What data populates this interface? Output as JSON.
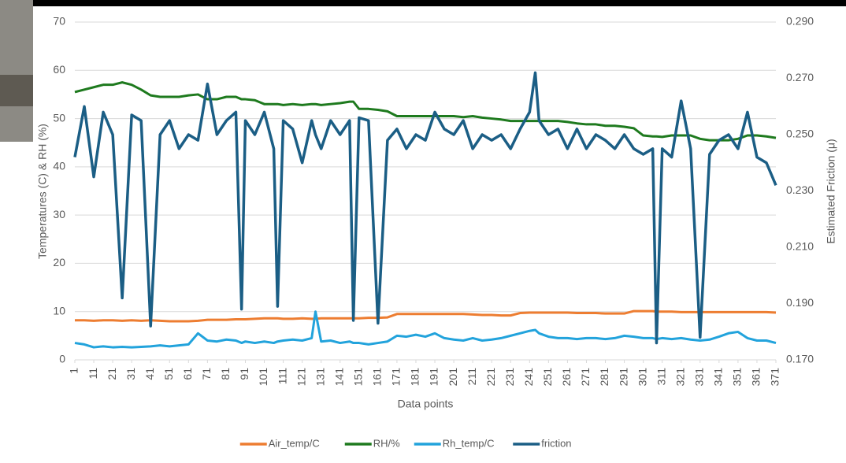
{
  "chart_data": {
    "type": "line",
    "y_label": "Temperatures (C) & RH (%)",
    "y2_label": "Estimated Friction (μ)",
    "x_label": "Data points",
    "legend": "bottom",
    "grid": true,
    "xlim": [
      1,
      371
    ],
    "xticks": [
      1,
      11,
      21,
      31,
      41,
      51,
      61,
      71,
      81,
      91,
      101,
      111,
      121,
      131,
      141,
      151,
      161,
      171,
      181,
      191,
      201,
      211,
      221,
      231,
      241,
      251,
      261,
      271,
      281,
      291,
      301,
      311,
      321,
      331,
      341,
      351,
      361,
      371
    ],
    "ylim": [
      0,
      70
    ],
    "yticks": [
      0,
      10,
      20,
      30,
      40,
      50,
      60,
      70
    ],
    "y2lim": [
      0.17,
      0.29
    ],
    "y2ticks": [
      {
        "value": 0.17,
        "label": "0.170"
      },
      {
        "value": 0.19,
        "label": "0.190"
      },
      {
        "value": 0.21,
        "label": "0.210"
      },
      {
        "value": 0.23,
        "label": "0.230"
      },
      {
        "value": 0.25,
        "label": "0.250"
      },
      {
        "value": 0.27,
        "label": "0.270"
      },
      {
        "value": 0.29,
        "label": "0.290"
      }
    ],
    "x": [
      1,
      6,
      11,
      16,
      21,
      26,
      31,
      36,
      41,
      46,
      51,
      56,
      61,
      66,
      71,
      76,
      81,
      86,
      89,
      91,
      96,
      101,
      106,
      108,
      111,
      116,
      121,
      126,
      128,
      131,
      136,
      141,
      146,
      148,
      151,
      156,
      161,
      166,
      171,
      176,
      181,
      186,
      191,
      196,
      201,
      206,
      211,
      216,
      221,
      226,
      231,
      236,
      241,
      244,
      246,
      251,
      256,
      261,
      266,
      271,
      276,
      281,
      286,
      291,
      296,
      301,
      306,
      308,
      311,
      316,
      321,
      326,
      331,
      336,
      341,
      346,
      351,
      356,
      361,
      366,
      371
    ],
    "series": [
      {
        "name": "Air_temp/C",
        "color": "#ed7d31",
        "values": [
          8.2,
          8.2,
          8.1,
          8.2,
          8.2,
          8.1,
          8.2,
          8.1,
          8.2,
          8.1,
          8.0,
          8.0,
          8.0,
          8.1,
          8.3,
          8.3,
          8.3,
          8.4,
          8.4,
          8.4,
          8.5,
          8.6,
          8.6,
          8.6,
          8.5,
          8.5,
          8.6,
          8.5,
          8.5,
          8.6,
          8.6,
          8.6,
          8.6,
          8.6,
          8.6,
          8.7,
          8.7,
          8.8,
          9.5,
          9.5,
          9.5,
          9.5,
          9.5,
          9.5,
          9.5,
          9.5,
          9.4,
          9.3,
          9.3,
          9.2,
          9.2,
          9.7,
          9.8,
          9.8,
          9.8,
          9.8,
          9.8,
          9.8,
          9.7,
          9.7,
          9.7,
          9.6,
          9.6,
          9.6,
          10.1,
          10.1,
          10.1,
          10.0,
          10.0,
          10.0,
          9.9,
          9.9,
          9.9,
          9.9,
          9.9,
          9.9,
          9.9,
          9.9,
          9.9,
          9.9,
          9.8
        ]
      },
      {
        "name": "RH/%",
        "color": "#1e7a1e",
        "values": [
          55.5,
          56,
          56.5,
          57,
          57,
          57.5,
          57,
          56,
          54.8,
          54.5,
          54.5,
          54.5,
          54.8,
          55,
          54,
          54,
          54.5,
          54.5,
          54,
          54,
          53.8,
          53,
          53,
          53,
          52.8,
          53,
          52.8,
          53,
          53,
          52.8,
          53,
          53.2,
          53.5,
          53.5,
          52,
          52,
          51.8,
          51.5,
          50.5,
          50.5,
          50.5,
          50.5,
          50.5,
          50.5,
          50.5,
          50.3,
          50.5,
          50.2,
          50,
          49.8,
          49.5,
          49.5,
          49.5,
          49.5,
          49.5,
          49.5,
          49.5,
          49.3,
          49,
          48.8,
          48.8,
          48.5,
          48.5,
          48.3,
          48,
          46.5,
          46.3,
          46.3,
          46.2,
          46.5,
          46.5,
          46.5,
          45.8,
          45.5,
          45.5,
          45.5,
          45.8,
          46.5,
          46.5,
          46.3,
          46
        ]
      },
      {
        "name": "Rh_temp/C",
        "color": "#22a3dc",
        "values": [
          3.5,
          3.2,
          2.6,
          2.8,
          2.6,
          2.7,
          2.6,
          2.7,
          2.8,
          3.0,
          2.8,
          3.0,
          3.2,
          5.5,
          4.0,
          3.8,
          4.2,
          4.0,
          3.5,
          3.8,
          3.5,
          3.8,
          3.5,
          3.8,
          4.0,
          4.2,
          4.0,
          4.5,
          10.0,
          3.8,
          4.0,
          3.5,
          3.8,
          3.5,
          3.5,
          3.2,
          3.5,
          3.8,
          5.0,
          4.8,
          5.2,
          4.8,
          5.5,
          4.5,
          4.2,
          4.0,
          4.5,
          4.0,
          4.2,
          4.5,
          5.0,
          5.5,
          6.0,
          6.2,
          5.5,
          4.8,
          4.5,
          4.5,
          4.3,
          4.5,
          4.5,
          4.3,
          4.5,
          5.0,
          4.8,
          4.5,
          4.5,
          4.3,
          4.5,
          4.3,
          4.5,
          4.2,
          4.0,
          4.2,
          4.8,
          5.5,
          5.8,
          4.5,
          4.0,
          4.0,
          3.5
        ]
      },
      {
        "name": "friction",
        "color": "#1b5e85",
        "axis": "y2",
        "values": [
          0.242,
          0.26,
          0.235,
          0.258,
          0.25,
          0.192,
          0.257,
          0.255,
          0.182,
          0.25,
          0.255,
          0.245,
          0.25,
          0.248,
          0.268,
          0.25,
          0.255,
          0.258,
          0.188,
          0.255,
          0.25,
          0.258,
          0.245,
          0.189,
          0.255,
          0.252,
          0.24,
          0.255,
          0.25,
          0.245,
          0.255,
          0.25,
          0.255,
          0.184,
          0.256,
          0.255,
          0.183,
          0.248,
          0.252,
          0.245,
          0.25,
          0.248,
          0.258,
          0.252,
          0.25,
          0.255,
          0.245,
          0.25,
          0.248,
          0.25,
          0.245,
          0.252,
          0.258,
          0.272,
          0.255,
          0.25,
          0.252,
          0.245,
          0.252,
          0.245,
          0.25,
          0.248,
          0.245,
          0.25,
          0.245,
          0.243,
          0.245,
          0.176,
          0.245,
          0.242,
          0.262,
          0.245,
          0.178,
          0.243,
          0.248,
          0.25,
          0.245,
          0.258,
          0.242,
          0.24,
          0.232
        ]
      }
    ]
  }
}
